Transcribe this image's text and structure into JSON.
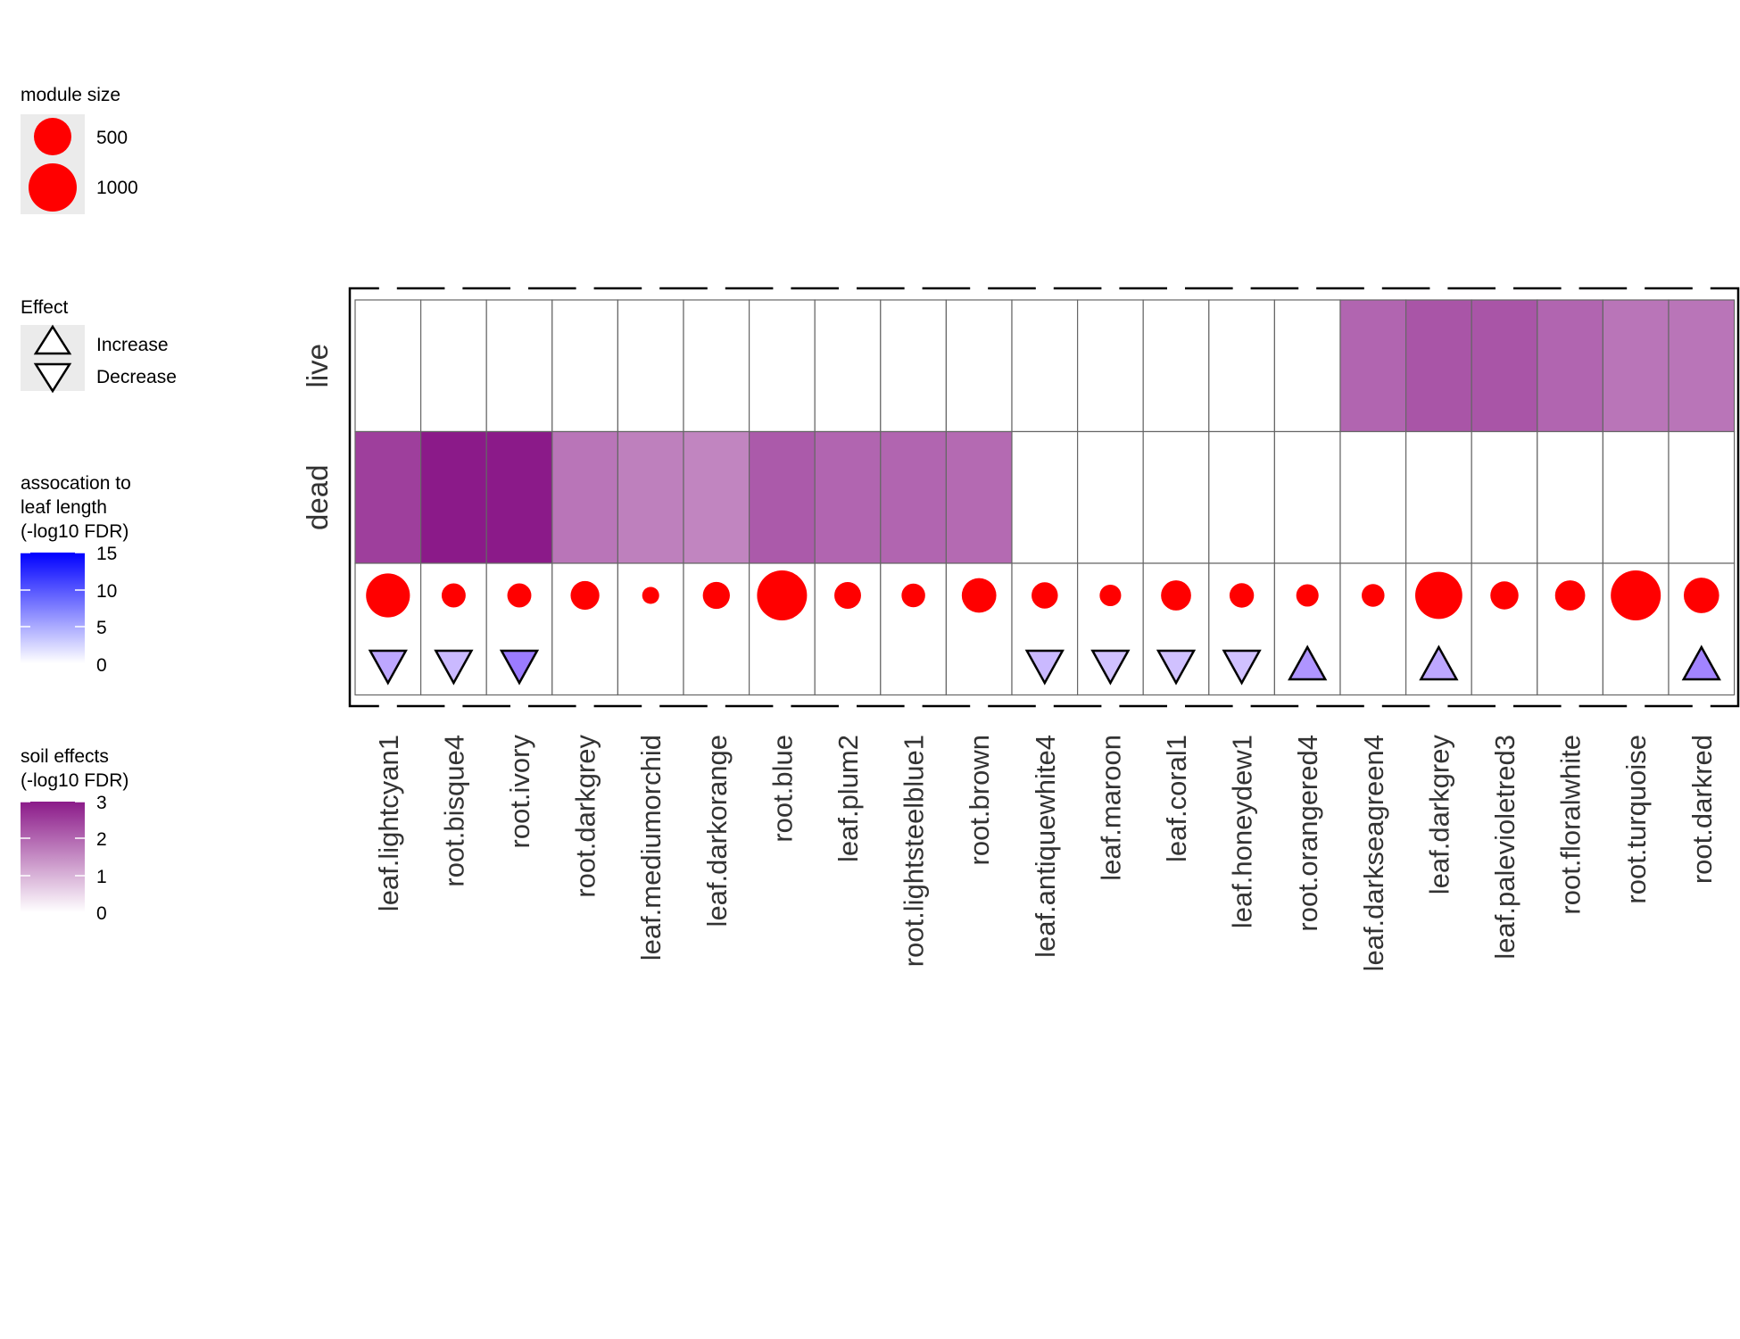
{
  "chart_data": {
    "type": "heatmap",
    "rows": [
      "live",
      "dead"
    ],
    "columns": [
      "leaf.lightcyan1",
      "root.bisque4",
      "root.ivory",
      "root.darkgrey",
      "leaf.mediumorchid",
      "leaf.darkorange",
      "root.blue",
      "leaf.plum2",
      "root.lightsteelblue1",
      "root.brown",
      "leaf.antiquewhite4",
      "leaf.maroon",
      "leaf.coral1",
      "leaf.honeydew1",
      "root.orangered4",
      "leaf.darkseagreen4",
      "leaf.darkgrey",
      "leaf.palevioletred3",
      "root.floralwhite",
      "root.turquoise",
      "root.darkred"
    ],
    "soil_effects": {
      "live": [
        0,
        0,
        0,
        0,
        0,
        0,
        0,
        0,
        0,
        0,
        0,
        0,
        0,
        0,
        0,
        1.6,
        1.9,
        1.9,
        1.6,
        1.3,
        1.3
      ],
      "dead": [
        2.3,
        3.0,
        3.0,
        1.3,
        1.1,
        1.0,
        1.8,
        1.6,
        1.6,
        1.5,
        0,
        0,
        0,
        0,
        0,
        0,
        0,
        0,
        0,
        0,
        0
      ]
    },
    "module_size": [
      1000,
      300,
      300,
      430,
      150,
      380,
      1300,
      370,
      290,
      620,
      360,
      240,
      470,
      310,
      260,
      270,
      1150,
      410,
      470,
      1600,
      650
    ],
    "effect_direction": [
      "Decrease",
      "Decrease",
      "Decrease",
      null,
      null,
      null,
      null,
      null,
      null,
      null,
      "Decrease",
      "Decrease",
      "Decrease",
      "Decrease",
      "Increase",
      null,
      "Increase",
      null,
      null,
      null,
      "Increase"
    ],
    "leaf_length_association": [
      5,
      3,
      10,
      null,
      null,
      null,
      null,
      null,
      null,
      null,
      3,
      2,
      2,
      2,
      7,
      null,
      5,
      null,
      null,
      null,
      9
    ],
    "soil_effects_scale": {
      "min": 0,
      "max": 3,
      "low_color": "#ffffff",
      "high_color": "#8b1a89"
    },
    "assoc_scale": {
      "min": 0,
      "max": 15,
      "low_color": "#ffffff",
      "high_color": "#0000ff"
    }
  },
  "legend": {
    "module_size": {
      "title": "module size",
      "items": [
        {
          "label": "500",
          "value": 500
        },
        {
          "label": "1000",
          "value": 1000
        }
      ]
    },
    "effect": {
      "title": "Effect",
      "items": [
        {
          "label": "Increase",
          "shape": "triangle-up"
        },
        {
          "label": "Decrease",
          "shape": "triangle-down"
        }
      ]
    },
    "assoc": {
      "title_lines": [
        "assocation to",
        "leaf length",
        "(-log10 FDR)"
      ],
      "ticks": [
        "15",
        "10",
        "5",
        "0"
      ]
    },
    "soil": {
      "title_lines": [
        "soil effects",
        "(-log10 FDR)"
      ],
      "ticks": [
        "3",
        "2",
        "1",
        "0"
      ]
    }
  },
  "colors": {
    "point": "#ff0000",
    "grid": "#666666",
    "frame": "#000000"
  }
}
